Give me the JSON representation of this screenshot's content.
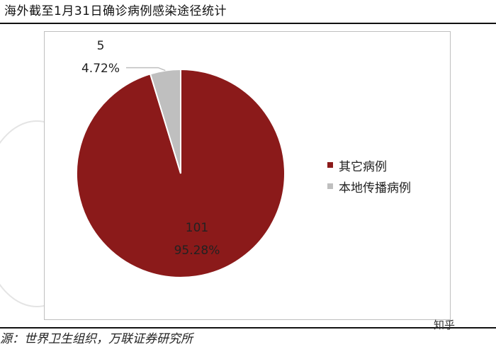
{
  "header": {
    "title": "海外截至1月31日确诊病例感染途径统计"
  },
  "footer": {
    "source": "源：世界卫生组织，万联证券研究所"
  },
  "watermark": {
    "badge": "知乎"
  },
  "chart_data": {
    "type": "pie",
    "title": "",
    "slices": [
      {
        "label": "其它病例",
        "value": 101,
        "percent": "95.28%",
        "color": "#8b1a1a"
      },
      {
        "label": "本地传播病例",
        "value": 5,
        "percent": "4.72%",
        "color": "#bfbfbf"
      }
    ],
    "legend_position": "right"
  }
}
